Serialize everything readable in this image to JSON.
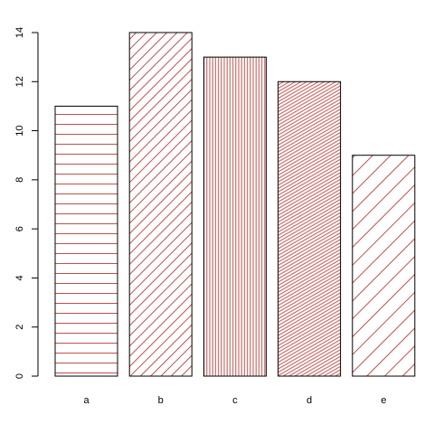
{
  "chart_data": {
    "type": "bar",
    "categories": [
      "a",
      "b",
      "c",
      "d",
      "e"
    ],
    "values": [
      11,
      14,
      13,
      12,
      9
    ],
    "color": "#c0504d",
    "ylim": [
      0,
      14
    ],
    "yticks": [
      0,
      2,
      4,
      6,
      8,
      10,
      12,
      14
    ],
    "grid": false
  }
}
